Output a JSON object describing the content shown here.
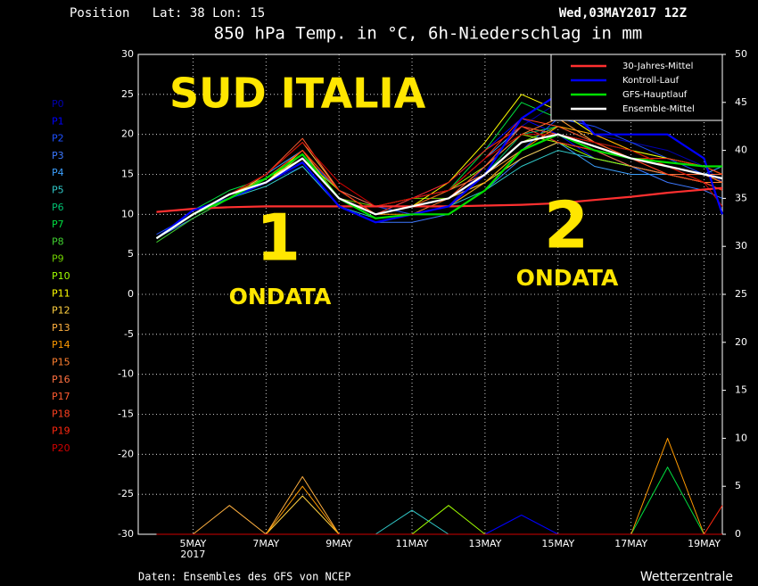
{
  "chart_data": {
    "type": "line",
    "header_left": "Position   Lat: 38 Lon: 15",
    "header_right": "Wed,03MAY2017 12Z",
    "title": "850 hPa Temp. in °C, 6h-Niederschlag in mm",
    "footer_left": "Daten: Ensembles des GFS von NCEP",
    "footer_right": "Wetterzentrale",
    "annotations": [
      "SUD ITALIA",
      "1",
      "ONDATA",
      "2",
      "ONDATA"
    ],
    "x_year_label": "2017",
    "x": [
      4,
      5,
      6,
      7,
      8,
      9,
      10,
      11,
      12,
      13,
      14,
      15,
      16,
      17,
      18,
      19,
      19.5
    ],
    "xlim": [
      3.5,
      19.5
    ],
    "xticks": [
      {
        "value": 5,
        "label": "5MAY"
      },
      {
        "value": 7,
        "label": "7MAY"
      },
      {
        "value": 9,
        "label": "9MAY"
      },
      {
        "value": 11,
        "label": "11MAY"
      },
      {
        "value": 13,
        "label": "13MAY"
      },
      {
        "value": 15,
        "label": "15MAY"
      },
      {
        "value": 17,
        "label": "17MAY"
      },
      {
        "value": 19,
        "label": "19MAY"
      }
    ],
    "ylim": [
      -30,
      30
    ],
    "yticks": [
      30,
      25,
      20,
      15,
      10,
      5,
      0,
      -5,
      -10,
      -15,
      -20,
      -25,
      -30
    ],
    "y2lim": [
      0,
      50
    ],
    "y2ticks": [
      50,
      45,
      40,
      35,
      30,
      25,
      20,
      15,
      10,
      5,
      0
    ],
    "grid": true,
    "legend": "upper right",
    "series": [
      {
        "name": "30-Jahres-Mittel",
        "color": "#ff3030",
        "values": [
          10.3,
          10.7,
          10.9,
          11,
          11,
          11,
          11,
          11,
          11,
          11.1,
          11.2,
          11.4,
          11.8,
          12.2,
          12.7,
          13.1,
          13.3
        ]
      },
      {
        "name": "Kontroll-Lauf",
        "color": "#0000ff",
        "values": [
          7,
          10.5,
          12,
          14,
          16.5,
          11,
          9,
          10,
          11,
          15,
          22,
          25,
          20,
          20,
          20,
          17,
          10
        ]
      },
      {
        "name": "GFS-Hauptlauf",
        "color": "#00e000",
        "values": [
          7,
          10,
          12,
          14.5,
          17.5,
          12,
          9.5,
          10,
          10,
          13,
          18,
          20,
          18,
          17,
          16.5,
          16,
          16
        ]
      },
      {
        "name": "Ensemble-Mittel",
        "color": "#ffffff",
        "values": [
          7,
          10,
          12.5,
          14,
          17,
          12,
          10,
          11,
          12,
          15,
          19,
          20,
          18.5,
          17,
          16,
          15,
          14.5
        ]
      }
    ],
    "members": [
      {
        "name": "P0",
        "color": "#0000b0",
        "values": [
          7,
          10,
          12,
          14,
          16,
          11,
          9,
          10,
          11,
          16,
          21,
          24,
          20,
          19,
          18,
          16,
          14
        ],
        "precip": [
          0,
          0,
          0,
          0,
          0,
          0,
          0,
          0,
          0,
          0,
          0,
          0,
          0,
          0,
          0,
          0,
          0
        ]
      },
      {
        "name": "P1",
        "color": "#0000ff",
        "values": [
          7,
          10,
          12.5,
          14,
          17,
          12,
          10,
          12,
          14,
          18,
          22,
          20,
          17,
          16,
          15,
          14,
          13
        ],
        "precip": [
          0,
          0,
          0,
          0,
          0,
          0,
          0,
          0,
          0,
          0,
          2,
          0,
          0,
          0,
          0,
          0,
          0
        ]
      },
      {
        "name": "P2",
        "color": "#1e50ff",
        "values": [
          7.5,
          10,
          12,
          14.5,
          17.5,
          13,
          11,
          10,
          11,
          14,
          18,
          22,
          21,
          19,
          17,
          15,
          15
        ],
        "precip": [
          0,
          0,
          0,
          0,
          0,
          0,
          0,
          0,
          0,
          0,
          0,
          0,
          0,
          0,
          0,
          0,
          0
        ]
      },
      {
        "name": "P3",
        "color": "#3c78ff",
        "values": [
          7,
          9.5,
          12,
          14,
          16.5,
          11,
          9,
          9,
          10,
          13,
          17,
          19,
          18,
          16,
          14,
          13,
          12
        ],
        "precip": [
          0,
          0,
          0,
          0,
          0,
          0,
          0,
          0,
          0,
          0,
          0,
          0,
          0,
          0,
          0,
          0,
          0
        ]
      },
      {
        "name": "P4",
        "color": "#3ca0ff",
        "values": [
          7,
          10,
          12.5,
          15,
          18,
          12,
          10,
          12,
          13,
          17,
          21,
          19,
          16,
          15,
          15,
          15,
          16
        ],
        "precip": [
          0,
          0,
          0,
          0,
          0,
          0,
          0,
          0,
          0,
          0,
          0,
          0,
          0,
          0,
          0,
          0,
          0
        ]
      },
      {
        "name": "P5",
        "color": "#30c8c8",
        "values": [
          7,
          10,
          12,
          13.5,
          16,
          11,
          9.5,
          10,
          11,
          13,
          16,
          18,
          17,
          16,
          15,
          14,
          14
        ],
        "precip": [
          0,
          0,
          0,
          0,
          0,
          0,
          0,
          2.5,
          0,
          0,
          0,
          0,
          0,
          0,
          0,
          0,
          0
        ]
      },
      {
        "name": "P6",
        "color": "#00c070",
        "values": [
          7,
          10,
          12,
          14,
          17,
          12,
          10,
          11,
          12,
          15,
          20,
          21,
          19,
          18,
          17,
          16,
          15
        ],
        "precip": [
          0,
          0,
          0,
          0,
          0,
          0,
          0,
          0,
          0,
          0,
          0,
          0,
          0,
          0,
          0,
          0,
          0
        ]
      },
      {
        "name": "P7",
        "color": "#00e040",
        "values": [
          7,
          10.5,
          13,
          14.5,
          18,
          13,
          10,
          11,
          13,
          18,
          24,
          22,
          19,
          17,
          16,
          15,
          14
        ],
        "precip": [
          0,
          0,
          0,
          0,
          0,
          0,
          0,
          0,
          0,
          0,
          0,
          0,
          0,
          0,
          7,
          0,
          0
        ]
      },
      {
        "name": "P8",
        "color": "#40d030",
        "values": [
          6.5,
          9.5,
          12,
          14,
          16.5,
          11,
          9,
          10,
          11,
          14,
          18,
          20,
          18,
          17,
          16,
          15,
          15
        ],
        "precip": [
          0,
          0,
          0,
          0,
          0,
          0,
          0,
          0,
          0,
          0,
          0,
          0,
          0,
          0,
          0,
          0,
          0
        ]
      },
      {
        "name": "P9",
        "color": "#70d000",
        "values": [
          7,
          10,
          12,
          14,
          17,
          12,
          11,
          12,
          12,
          15,
          19,
          21,
          20,
          18,
          16,
          15,
          14
        ],
        "precip": [
          0,
          0,
          0,
          0,
          0,
          0,
          0,
          0,
          0,
          0,
          0,
          0,
          0,
          0,
          0,
          0,
          0
        ]
      },
      {
        "name": "P10",
        "color": "#a0ff00",
        "values": [
          7,
          10,
          12.5,
          14.5,
          17,
          13,
          10,
          11,
          13,
          16,
          20,
          19,
          17,
          16,
          15,
          14,
          14
        ],
        "precip": [
          0,
          0,
          0,
          0,
          0,
          0,
          0,
          0,
          3,
          0,
          0,
          0,
          0,
          0,
          0,
          0,
          0
        ]
      },
      {
        "name": "P11",
        "color": "#ffff00",
        "values": [
          7,
          10,
          12.5,
          14,
          18,
          12,
          10,
          11,
          14,
          19,
          25,
          23,
          20,
          18,
          17,
          16,
          15
        ],
        "precip": [
          0,
          0,
          0,
          0,
          0,
          0,
          0,
          0,
          0,
          0,
          0,
          0,
          0,
          0,
          0,
          0,
          0
        ]
      },
      {
        "name": "P12",
        "color": "#ffd040",
        "values": [
          7,
          10,
          12,
          14,
          17.5,
          12,
          10,
          11,
          12,
          14,
          17,
          19,
          18,
          17,
          16,
          15,
          14
        ],
        "precip": [
          0,
          0,
          0,
          0,
          4,
          0,
          0,
          0,
          0,
          0,
          0,
          0,
          0,
          0,
          0,
          0,
          0
        ]
      },
      {
        "name": "P13",
        "color": "#ffb040",
        "values": [
          7,
          10,
          12,
          15,
          19,
          13,
          10,
          11,
          12,
          15,
          18,
          20,
          19,
          17,
          16,
          15,
          15
        ],
        "precip": [
          0,
          0,
          3,
          0,
          6,
          0,
          0,
          0,
          0,
          0,
          0,
          0,
          0,
          0,
          0,
          0,
          0
        ]
      },
      {
        "name": "P14",
        "color": "#ff9a00",
        "values": [
          7,
          10,
          12.5,
          14.5,
          18,
          12,
          10,
          10,
          11,
          14,
          18,
          21,
          20,
          18,
          16,
          14,
          13
        ],
        "precip": [
          0,
          0,
          0,
          0,
          5,
          0,
          0,
          0,
          0,
          0,
          0,
          0,
          0,
          0,
          10,
          0,
          0
        ]
      },
      {
        "name": "P15",
        "color": "#ff8030",
        "values": [
          7,
          10,
          12,
          14,
          17,
          12,
          9.5,
          10,
          12,
          16,
          20,
          22,
          19,
          17,
          15,
          14,
          14
        ],
        "precip": [
          0,
          0,
          0,
          0,
          0,
          0,
          0,
          0,
          0,
          0,
          0,
          0,
          0,
          0,
          0,
          0,
          0
        ]
      },
      {
        "name": "P16",
        "color": "#ff7040",
        "values": [
          7,
          10,
          12,
          14.5,
          18,
          13,
          11,
          12,
          13,
          15,
          19,
          20,
          18,
          16,
          15,
          15,
          15
        ],
        "precip": [
          0,
          0,
          0,
          0,
          0,
          0,
          0,
          0,
          0,
          0,
          0,
          0,
          0,
          0,
          0,
          0,
          0
        ]
      },
      {
        "name": "P17",
        "color": "#ff5a30",
        "values": [
          7,
          10,
          12.5,
          15,
          19.5,
          13,
          10,
          11,
          12,
          16,
          21,
          20,
          18,
          17,
          16,
          15,
          14
        ],
        "precip": [
          0,
          0,
          0,
          0,
          0,
          0,
          0,
          0,
          0,
          0,
          0,
          0,
          0,
          0,
          0,
          0,
          0
        ]
      },
      {
        "name": "P18",
        "color": "#ff4020",
        "values": [
          7,
          10,
          12,
          14,
          17,
          12,
          10,
          11,
          13,
          17,
          22,
          21,
          19,
          17,
          15,
          14,
          13
        ],
        "precip": [
          0,
          0,
          0,
          0,
          0,
          0,
          0,
          0,
          0,
          0,
          0,
          0,
          0,
          0,
          0,
          0,
          0
        ]
      },
      {
        "name": "P19",
        "color": "#ff2810",
        "values": [
          7,
          10,
          12,
          14.5,
          18,
          13,
          10,
          12,
          14,
          18,
          21,
          19,
          18,
          17,
          17,
          16,
          15
        ],
        "precip": [
          0,
          0,
          0,
          0,
          0,
          0,
          0,
          0,
          0,
          0,
          0,
          0,
          0,
          0,
          0,
          0,
          3
        ]
      },
      {
        "name": "P20",
        "color": "#d00000",
        "values": [
          7,
          10,
          12.5,
          15,
          19,
          14,
          11,
          12,
          13,
          17,
          20,
          20,
          19,
          18,
          16,
          14,
          11
        ],
        "precip": [
          0,
          0,
          0,
          0,
          0,
          0,
          0,
          0,
          0,
          0,
          0,
          0,
          0,
          0,
          0,
          0,
          0
        ]
      }
    ]
  }
}
